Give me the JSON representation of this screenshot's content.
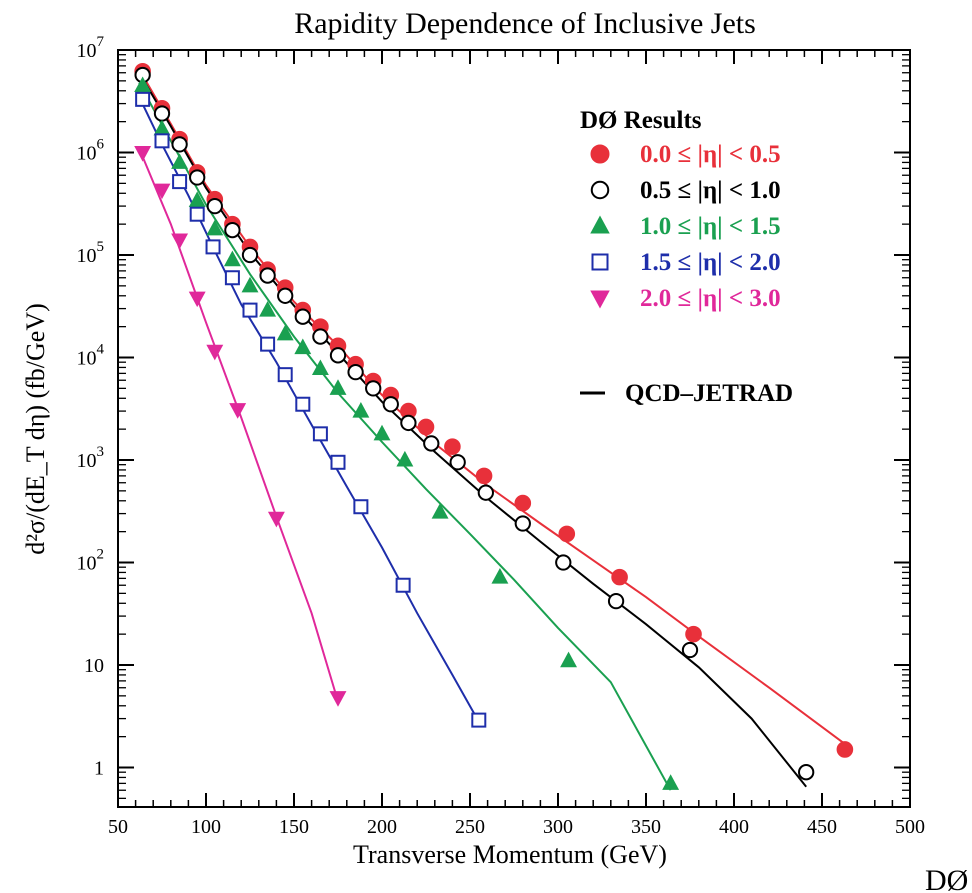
{
  "chart_data": {
    "type": "scatter",
    "title": "Rapidity Dependence of Inclusive Jets",
    "xlabel": "Transverse Momentum (GeV)",
    "ylabel": "d²σ/(dE_T dη) (fb/GeV)",
    "xlim": [
      50,
      500
    ],
    "ylim": [
      0.5,
      10000000
    ],
    "y_scale": "log",
    "grid": false,
    "x_ticks": [
      "50",
      "100",
      "150",
      "200",
      "250",
      "300",
      "350",
      "400",
      "450",
      "500"
    ],
    "y_ticks": [
      {
        "base": "10",
        "exp": "7",
        "value": 10000000
      },
      {
        "base": "10",
        "exp": "6",
        "value": 1000000
      },
      {
        "base": "10",
        "exp": "5",
        "value": 100000
      },
      {
        "base": "10",
        "exp": "4",
        "value": 10000
      },
      {
        "base": "10",
        "exp": "3",
        "value": 1000
      },
      {
        "base": "10",
        "exp": "2",
        "value": 100
      },
      {
        "base": "10",
        "exp": "",
        "value": 10
      },
      {
        "base": "1",
        "exp": "",
        "value": 1
      }
    ],
    "legend": {
      "placement": "top-right",
      "title": "DØ Results",
      "theory_label": "QCD–JETRAD"
    },
    "corner_label": "DØ",
    "series": [
      {
        "name": "0.0 ≤ |η| < 0.5",
        "color": "#e8303a",
        "marker": "filled-circle",
        "x": [
          64,
          75,
          85,
          95,
          105,
          115,
          125,
          135,
          145,
          155,
          165,
          175,
          185,
          195,
          205,
          215,
          225,
          240,
          258,
          280,
          305,
          335,
          377,
          463
        ],
        "y": [
          6200000,
          2700000,
          1350000,
          640000,
          350000,
          200000,
          120000,
          72000,
          48000,
          29000,
          20000,
          13000,
          8600,
          5900,
          4300,
          3000,
          2100,
          1350,
          700,
          380,
          190,
          72,
          20,
          1.5
        ],
        "theory_x": [
          62,
          80,
          100,
          125,
          150,
          175,
          200,
          230,
          260,
          290,
          320,
          350,
          380,
          420,
          465
        ],
        "theory_y": [
          6500000,
          1900000,
          480000,
          120000,
          35000,
          13000,
          4300,
          1450,
          560,
          240,
          105,
          46,
          19,
          6,
          1.6
        ]
      },
      {
        "name": "0.5 ≤ |η| < 1.0",
        "color": "#000000",
        "marker": "open-circle",
        "x": [
          64,
          75,
          85,
          95,
          105,
          115,
          125,
          135,
          145,
          155,
          165,
          175,
          185,
          195,
          205,
          215,
          228,
          243,
          259,
          280,
          303,
          333,
          375,
          441
        ],
        "y": [
          5700000,
          2400000,
          1200000,
          570000,
          300000,
          175000,
          100000,
          63000,
          40000,
          25000,
          16000,
          10500,
          7200,
          5000,
          3500,
          2300,
          1450,
          950,
          480,
          240,
          100,
          42,
          14,
          0.9
        ],
        "theory_x": [
          62,
          80,
          100,
          125,
          150,
          175,
          200,
          230,
          260,
          290,
          320,
          350,
          380,
          410,
          441
        ],
        "theory_y": [
          6000000,
          1800000,
          450000,
          105000,
          32000,
          11000,
          3700,
          1200,
          420,
          160,
          62,
          25,
          9.5,
          3.0,
          0.65
        ]
      },
      {
        "name": "1.0 ≤ |η| < 1.5",
        "color": "#1aa050",
        "marker": "filled-triangle-up",
        "x": [
          64,
          75,
          85,
          95,
          105,
          115,
          125,
          135,
          145,
          155,
          165,
          175,
          188,
          200,
          213,
          233,
          267,
          306,
          364
        ],
        "y": [
          4500000,
          1700000,
          800000,
          340000,
          180000,
          90000,
          50000,
          29000,
          17000,
          12500,
          7800,
          5000,
          3000,
          1800,
          1000,
          310,
          72,
          11,
          0.7
        ],
        "theory_x": [
          62,
          80,
          100,
          125,
          150,
          175,
          200,
          225,
          250,
          275,
          300,
          330,
          364
        ],
        "theory_y": [
          4800000,
          1300000,
          310000,
          65000,
          16000,
          4500,
          1500,
          520,
          190,
          68,
          23,
          6.8,
          0.6
        ]
      },
      {
        "name": "1.5 ≤ |η| < 2.0",
        "color": "#1e2eaa",
        "marker": "open-square",
        "x": [
          64,
          75,
          85,
          95,
          104,
          115,
          125,
          135,
          145,
          155,
          165,
          175,
          188,
          212,
          255
        ],
        "y": [
          3300000,
          1300000,
          520000,
          250000,
          120000,
          60000,
          29000,
          13500,
          6800,
          3500,
          1800,
          950,
          350,
          60,
          2.9
        ],
        "theory_x": [
          62,
          75,
          90,
          105,
          120,
          140,
          160,
          180,
          200,
          220,
          240,
          255
        ],
        "theory_y": [
          3500000,
          1200000,
          380000,
          110000,
          33000,
          9000,
          2200,
          550,
          140,
          32,
          8.0,
          2.8
        ]
      },
      {
        "name": "2.0 ≤ |η| < 3.0",
        "color": "#e0289a",
        "marker": "filled-triangle-down",
        "x": [
          64,
          75,
          85,
          95,
          105,
          118,
          140,
          175
        ],
        "y": [
          1000000,
          430000,
          140000,
          38000,
          11500,
          3100,
          270,
          4.8
        ],
        "theory_x": [
          62,
          80,
          100,
          120,
          140,
          160,
          175
        ],
        "theory_y": [
          1100000,
          200000,
          22000,
          2600,
          280,
          32,
          4.4
        ]
      }
    ]
  }
}
